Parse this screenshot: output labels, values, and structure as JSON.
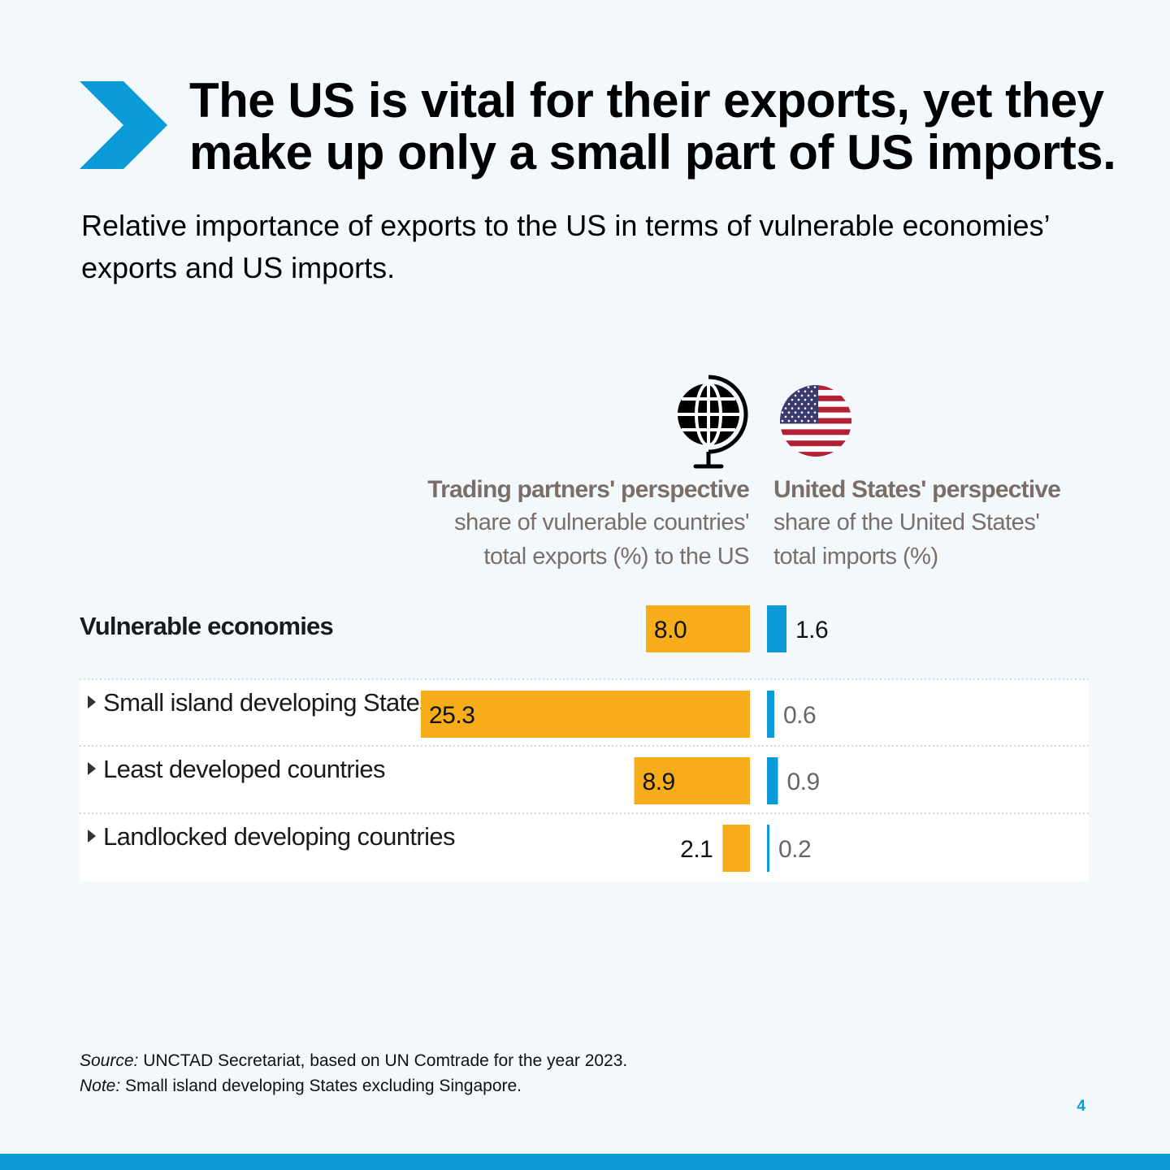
{
  "title": "The US is vital for their exports, yet they make up only a small part of US imports.",
  "subtitle": "Relative importance of exports to the US in terms of vulnerable economies’ exports and US imports.",
  "icons": {
    "left": "globe-icon",
    "right": "us-flag-icon"
  },
  "colors": {
    "accent": "#0a9ad8",
    "exports_bar": "#f7ac19",
    "imports_bar": "#0a9ad8",
    "header_text": "#7a6f68",
    "background": "#f3f8fd"
  },
  "chart_data": {
    "type": "bar",
    "layout": "butterfly",
    "left_panel": {
      "title": "Trading partners' perspective",
      "subtitle_line1": "share of vulnerable countries'",
      "subtitle_line2": "total exports (%) to the US"
    },
    "right_panel": {
      "title": "United States' perspective",
      "subtitle_line1": "share of the United States'",
      "subtitle_line2": "total imports (%)"
    },
    "categories": [
      "Vulnerable economies",
      "Small island developing States",
      "Least developed countries",
      "Landlocked developing countries"
    ],
    "series": [
      {
        "values": [
          8.0,
          25.3,
          8.9,
          2.1
        ],
        "labels": [
          "8.0",
          "25.3",
          "8.9",
          "2.1"
        ]
      },
      {
        "values": [
          1.6,
          0.6,
          0.9,
          0.2
        ],
        "labels": [
          "1.6",
          "0.6",
          "0.9",
          "0.2"
        ]
      }
    ]
  },
  "footnote": {
    "source_label": "Source:",
    "source_text": " UNCTAD Secretariat, based on UN Comtrade for the year 2023.",
    "note_label": "Note:",
    "note_text": " Small island developing States excluding Singapore."
  },
  "page_number": "4"
}
